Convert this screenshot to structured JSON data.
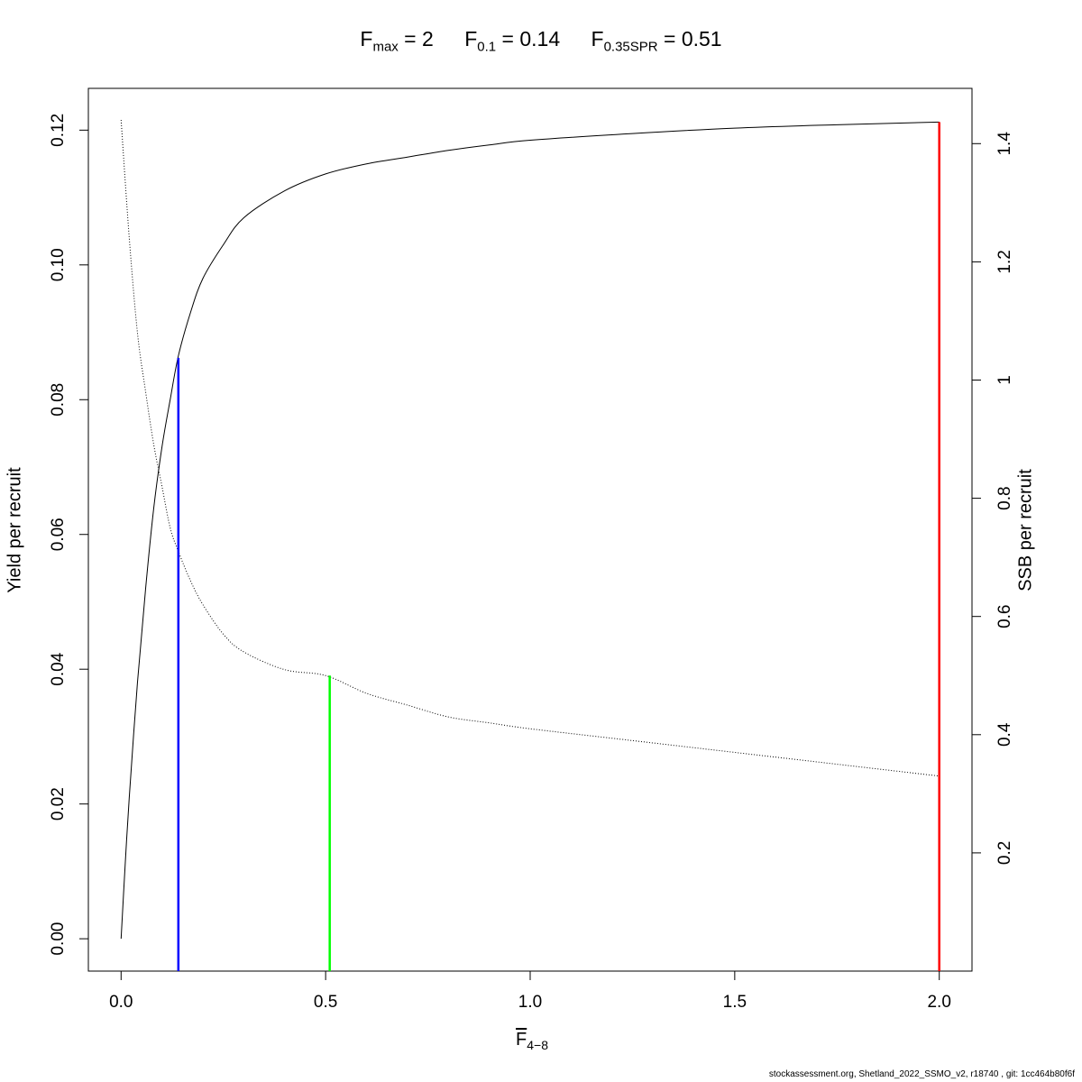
{
  "title": {
    "items": [
      {
        "symbol": "F",
        "sub": "max",
        "value": "2"
      },
      {
        "symbol": "F",
        "sub": "0.1",
        "value": "0.14"
      },
      {
        "symbol": "F",
        "sub": "0.35SPR",
        "value": "0.51"
      }
    ]
  },
  "axes": {
    "x_label_symbol": "F",
    "x_label_sub": "4−8",
    "y_left_label": "Yield per recruit",
    "y_right_label": "SSB per recruit"
  },
  "footer": "stockassessment.org, Shetland_2022_SSMO_v2, r18740 , git: 1cc464b80f6f",
  "chart_data": {
    "type": "line",
    "xlim": [
      -0.08,
      2.08
    ],
    "ylim_left": [
      -0.0048,
      0.1262
    ],
    "ylim_right": [
      -0.0,
      1.4935
    ],
    "x_ticks": [
      0.0,
      0.5,
      1.0,
      1.5,
      2.0
    ],
    "x_tick_labels": [
      "0.0",
      "0.5",
      "1.0",
      "1.5",
      "2.0"
    ],
    "y_left_ticks": [
      0.0,
      0.02,
      0.04,
      0.06,
      0.08,
      0.1,
      0.12
    ],
    "y_left_tick_labels": [
      "0.00",
      "0.02",
      "0.04",
      "0.06",
      "0.08",
      "0.10",
      "0.12"
    ],
    "y_right_ticks": [
      0.2,
      0.4,
      0.6,
      0.8,
      1.0,
      1.2,
      1.4
    ],
    "y_right_tick_labels": [
      "0.2",
      "0.4",
      "0.6",
      "0.8",
      "1",
      "1.2",
      "1.4"
    ],
    "series": [
      {
        "axis": "left",
        "style": "solid",
        "color": "#000000",
        "x": [
          0,
          0.01,
          0.02,
          0.04,
          0.06,
          0.08,
          0.1,
          0.12,
          0.14,
          0.17,
          0.2,
          0.25,
          0.3,
          0.4,
          0.5,
          0.6,
          0.7,
          0.8,
          0.9,
          1.0,
          1.25,
          1.5,
          1.75,
          2.0
        ],
        "y": [
          0.0,
          0.011,
          0.021,
          0.038,
          0.052,
          0.064,
          0.073,
          0.08,
          0.0865,
          0.093,
          0.098,
          0.103,
          0.107,
          0.111,
          0.1135,
          0.115,
          0.116,
          0.117,
          0.1178,
          0.1185,
          0.1195,
          0.1203,
          0.1208,
          0.1212
        ]
      },
      {
        "axis": "right",
        "style": "dotted",
        "color": "#000000",
        "x": [
          0,
          0.02,
          0.04,
          0.06,
          0.08,
          0.1,
          0.12,
          0.14,
          0.17,
          0.2,
          0.25,
          0.3,
          0.4,
          0.5,
          0.6,
          0.7,
          0.8,
          0.9,
          1.0,
          1.25,
          1.5,
          1.75,
          2.0
        ],
        "y": [
          1.44,
          1.24,
          1.08,
          0.98,
          0.89,
          0.82,
          0.75,
          0.71,
          0.66,
          0.62,
          0.57,
          0.54,
          0.51,
          0.5,
          0.47,
          0.45,
          0.43,
          0.42,
          0.41,
          0.39,
          0.37,
          0.35,
          0.33
        ]
      }
    ],
    "reference_lines": [
      {
        "name": "F0.1",
        "x": 0.14,
        "axis": "left",
        "y_top": 0.0862,
        "color": "#0000ff"
      },
      {
        "name": "F0.35SPR",
        "x": 0.51,
        "axis": "right",
        "y_top": 0.5,
        "color": "#00ff00"
      },
      {
        "name": "Fmax",
        "x": 2.0,
        "axis": "left",
        "y_top": 0.1212,
        "color": "#ff0000"
      }
    ]
  }
}
